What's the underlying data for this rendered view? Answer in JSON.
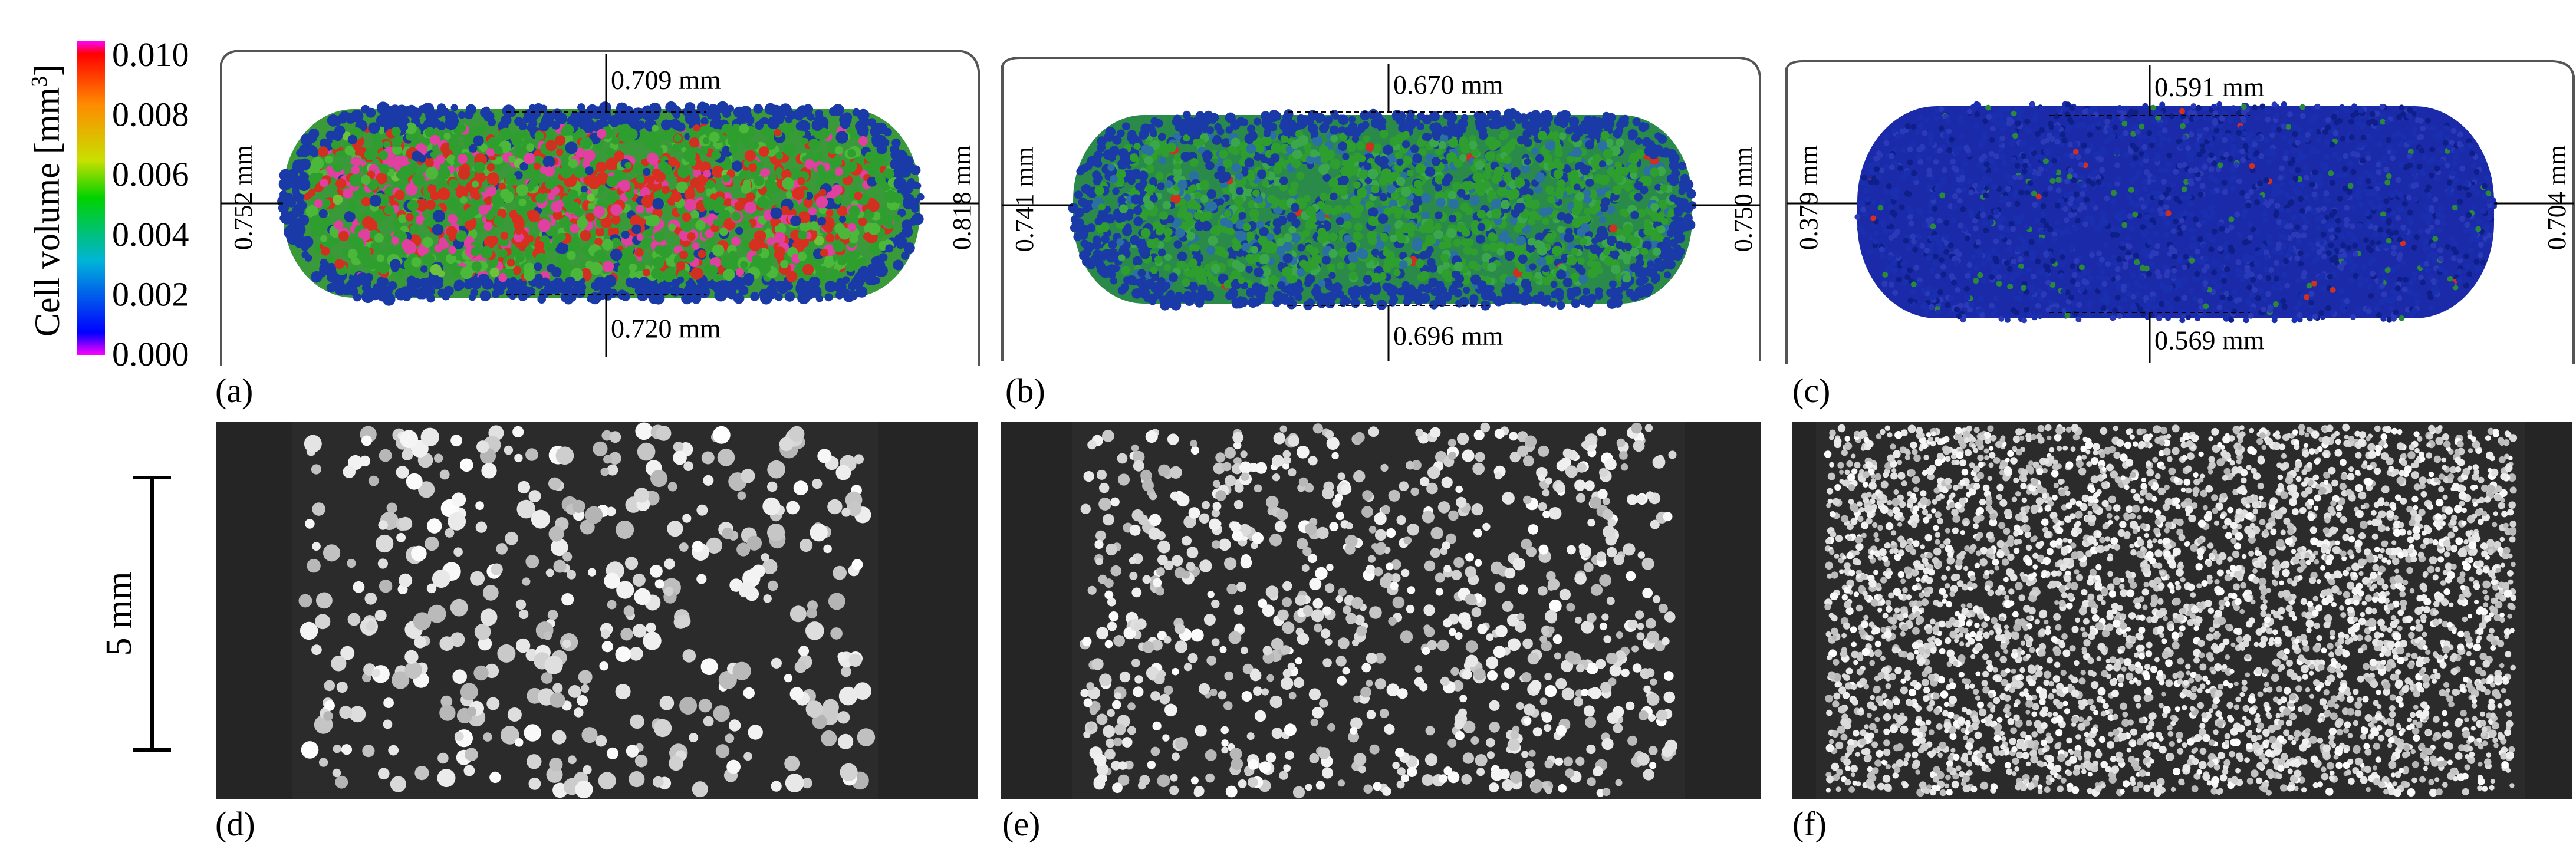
{
  "colorbar": {
    "label": "Cell volume [mm",
    "label_sup": "3",
    "label_end": "]",
    "ticks": [
      "0.010",
      "0.008",
      "0.006",
      "0.004",
      "0.002",
      "0.000"
    ]
  },
  "panels_3d": [
    {
      "label": "(a)",
      "top": "0.709 mm",
      "bottom": "0.720 mm",
      "left": "0.752 mm",
      "right": "0.818 mm"
    },
    {
      "label": "(b)",
      "top": "0.670 mm",
      "bottom": "0.696 mm",
      "left": "0.741 mm",
      "right": "0.750 mm"
    },
    {
      "label": "(c)",
      "top": "0.591 mm",
      "bottom": "0.569 mm",
      "left": "0.379 mm",
      "right": "0.704 mm"
    }
  ],
  "panels_ct": [
    {
      "label": "(d)"
    },
    {
      "label": "(e)"
    },
    {
      "label": "(f)"
    }
  ],
  "scale_bar": {
    "label": "5 mm"
  },
  "colors": {
    "cb_stops": [
      "#ff00ff",
      "#ff0000",
      "#ff8800",
      "#ffff00",
      "#00ff00",
      "#00ccff",
      "#0000ff",
      "#ff00ff"
    ],
    "ct_background": "#2b2b2b",
    "ct_edge": "#202020"
  }
}
